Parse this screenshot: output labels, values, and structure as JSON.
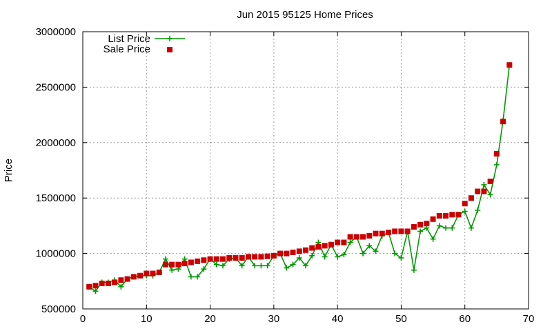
{
  "chart_data": {
    "type": "line",
    "title": "Jun 2015 95125 Home Prices",
    "xlabel": "",
    "ylabel": "Price",
    "xlim": [
      0,
      70
    ],
    "ylim": [
      500000,
      3000000
    ],
    "xticks": [
      0,
      10,
      20,
      30,
      40,
      50,
      60,
      70
    ],
    "yticks": [
      500000,
      1000000,
      1500000,
      2000000,
      2500000,
      3000000
    ],
    "grid": true,
    "legend_position": "top-left",
    "series": [
      {
        "name": "List Price",
        "style": "line-with-plus-markers",
        "color": "#009900",
        "x": [
          1,
          2,
          3,
          4,
          5,
          6,
          7,
          8,
          9,
          10,
          11,
          12,
          13,
          14,
          15,
          16,
          17,
          18,
          19,
          20,
          21,
          22,
          23,
          24,
          25,
          26,
          27,
          28,
          29,
          30,
          31,
          32,
          33,
          34,
          35,
          36,
          37,
          38,
          39,
          40,
          41,
          42,
          43,
          44,
          45,
          46,
          47,
          48,
          49,
          50,
          51,
          52,
          53,
          54,
          55,
          56,
          57,
          58,
          59,
          60,
          61,
          62,
          63,
          64,
          65,
          66,
          67
        ],
        "values": [
          700000,
          660000,
          740000,
          740000,
          760000,
          700000,
          770000,
          790000,
          800000,
          800000,
          800000,
          830000,
          950000,
          850000,
          860000,
          950000,
          790000,
          790000,
          860000,
          950000,
          900000,
          890000,
          950000,
          960000,
          890000,
          970000,
          890000,
          890000,
          890000,
          980000,
          1000000,
          870000,
          900000,
          960000,
          890000,
          980000,
          1100000,
          970000,
          1080000,
          970000,
          990000,
          1100000,
          1150000,
          1000000,
          1070000,
          1020000,
          1160000,
          1190000,
          1000000,
          960000,
          1200000,
          850000,
          1200000,
          1230000,
          1130000,
          1250000,
          1230000,
          1230000,
          1350000,
          1380000,
          1230000,
          1390000,
          1620000,
          1530000,
          1800000,
          2200000,
          2700000
        ]
      },
      {
        "name": "Sale Price",
        "style": "square-markers",
        "color": "#cc0000",
        "x": [
          1,
          2,
          3,
          4,
          5,
          6,
          7,
          8,
          9,
          10,
          11,
          12,
          13,
          14,
          15,
          16,
          17,
          18,
          19,
          20,
          21,
          22,
          23,
          24,
          25,
          26,
          27,
          28,
          29,
          30,
          31,
          32,
          33,
          34,
          35,
          36,
          37,
          38,
          39,
          40,
          41,
          42,
          43,
          44,
          45,
          46,
          47,
          48,
          49,
          50,
          51,
          52,
          53,
          54,
          55,
          56,
          57,
          58,
          59,
          60,
          61,
          62,
          63,
          64,
          65,
          66,
          67
        ],
        "values": [
          700000,
          710000,
          730000,
          730000,
          740000,
          760000,
          770000,
          790000,
          800000,
          820000,
          820000,
          830000,
          900000,
          900000,
          900000,
          910000,
          920000,
          930000,
          940000,
          950000,
          950000,
          950000,
          960000,
          960000,
          960000,
          970000,
          970000,
          970000,
          975000,
          980000,
          1000000,
          1000000,
          1010000,
          1020000,
          1030000,
          1050000,
          1060000,
          1070000,
          1080000,
          1100000,
          1100000,
          1150000,
          1150000,
          1150000,
          1160000,
          1180000,
          1180000,
          1190000,
          1200000,
          1200000,
          1200000,
          1240000,
          1260000,
          1270000,
          1310000,
          1340000,
          1340000,
          1350000,
          1350000,
          1450000,
          1500000,
          1560000,
          1560000,
          1650000,
          1900000,
          2190000,
          2700000
        ]
      }
    ]
  }
}
